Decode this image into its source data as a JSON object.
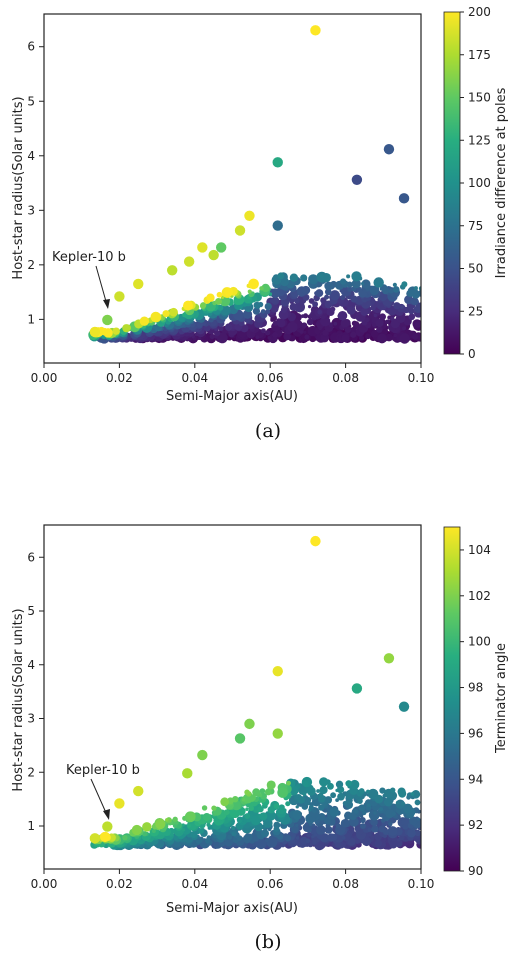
{
  "chart_data": [
    {
      "type": "scatter",
      "caption": "(a)",
      "xlabel": "Semi-Major axis(AU)",
      "ylabel": "Host-star radius(Solar units)",
      "xlim": [
        0.0,
        0.1
      ],
      "ylim": [
        0.2,
        6.6
      ],
      "xticks": [
        "0.00",
        "0.02",
        "0.04",
        "0.06",
        "0.08",
        "0.10"
      ],
      "yticks": [
        "1",
        "2",
        "3",
        "4",
        "5",
        "6"
      ],
      "grid": false,
      "colorbar": {
        "label": "Irradiance difference at poles",
        "range": [
          0,
          200
        ],
        "ticks": [
          "0",
          "25",
          "50",
          "75",
          "100",
          "125",
          "150",
          "175",
          "200"
        ],
        "colormap": "viridis"
      },
      "annotation": {
        "text": "Kepler-10 b",
        "x": 0.0168,
        "y": 0.99
      },
      "highlighted_points": [
        {
          "x": 0.0168,
          "y": 0.99,
          "value": 160
        },
        {
          "x": 0.072,
          "y": 6.3,
          "value": 200
        },
        {
          "x": 0.062,
          "y": 3.88,
          "value": 120
        },
        {
          "x": 0.062,
          "y": 2.72,
          "value": 70
        },
        {
          "x": 0.0915,
          "y": 4.12,
          "value": 55
        },
        {
          "x": 0.0955,
          "y": 3.22,
          "value": 55
        },
        {
          "x": 0.083,
          "y": 3.56,
          "value": 45
        },
        {
          "x": 0.0545,
          "y": 2.9,
          "value": 195
        },
        {
          "x": 0.052,
          "y": 2.63,
          "value": 185
        },
        {
          "x": 0.042,
          "y": 2.32,
          "value": 190
        },
        {
          "x": 0.047,
          "y": 2.32,
          "value": 150
        },
        {
          "x": 0.045,
          "y": 2.18,
          "value": 180
        },
        {
          "x": 0.0385,
          "y": 2.06,
          "value": 185
        },
        {
          "x": 0.034,
          "y": 1.9,
          "value": 180
        },
        {
          "x": 0.025,
          "y": 1.65,
          "value": 190
        },
        {
          "x": 0.02,
          "y": 1.42,
          "value": 185
        },
        {
          "x": 0.0135,
          "y": 0.77,
          "value": 195
        }
      ],
      "cloud": {
        "count": 1000,
        "x_range": [
          0.013,
          0.1
        ],
        "y_range": [
          0.5,
          2.3
        ],
        "value_range": [
          0,
          200
        ]
      }
    },
    {
      "type": "scatter",
      "caption": "(b)",
      "xlabel": "Semi-Major axis(AU)",
      "ylabel": "Host-star radius(Solar units)",
      "xlim": [
        0.0,
        0.1
      ],
      "ylim": [
        0.2,
        6.6
      ],
      "xticks": [
        "0.00",
        "0.02",
        "0.04",
        "0.06",
        "0.08",
        "0.10"
      ],
      "yticks": [
        "1",
        "2",
        "3",
        "4",
        "5",
        "6"
      ],
      "grid": false,
      "colorbar": {
        "label": "Terminator angle",
        "range": [
          90,
          105
        ],
        "ticks": [
          "90",
          "92",
          "94",
          "96",
          "98",
          "100",
          "102",
          "104"
        ],
        "colormap": "viridis"
      },
      "annotation": {
        "text": "Kepler-10 b",
        "x": 0.0168,
        "y": 0.99
      },
      "highlighted_points": [
        {
          "x": 0.0168,
          "y": 0.99,
          "value": 103.5
        },
        {
          "x": 0.072,
          "y": 6.3,
          "value": 105
        },
        {
          "x": 0.062,
          "y": 3.88,
          "value": 104.5
        },
        {
          "x": 0.062,
          "y": 2.72,
          "value": 102.5
        },
        {
          "x": 0.0915,
          "y": 4.12,
          "value": 102.5
        },
        {
          "x": 0.0955,
          "y": 3.22,
          "value": 97
        },
        {
          "x": 0.083,
          "y": 3.56,
          "value": 99
        },
        {
          "x": 0.0545,
          "y": 2.9,
          "value": 102
        },
        {
          "x": 0.052,
          "y": 2.63,
          "value": 101
        },
        {
          "x": 0.042,
          "y": 2.32,
          "value": 102
        },
        {
          "x": 0.038,
          "y": 1.98,
          "value": 103
        },
        {
          "x": 0.025,
          "y": 1.65,
          "value": 104
        },
        {
          "x": 0.02,
          "y": 1.42,
          "value": 104.5
        },
        {
          "x": 0.0135,
          "y": 0.77,
          "value": 104
        }
      ],
      "cloud": {
        "count": 1000,
        "x_range": [
          0.013,
          0.1
        ],
        "y_range": [
          0.5,
          2.3
        ],
        "value_range": [
          90,
          105
        ]
      }
    }
  ]
}
